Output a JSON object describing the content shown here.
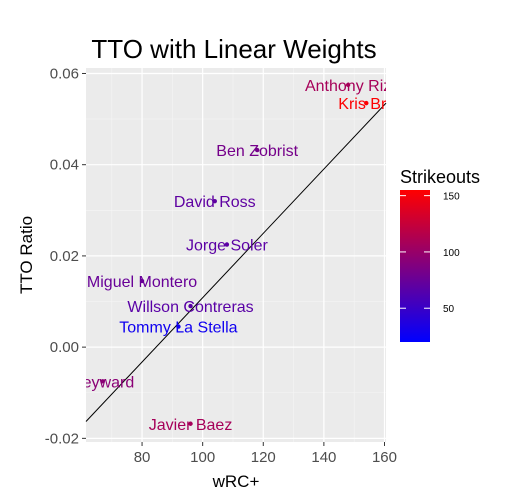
{
  "chart_data": {
    "type": "scatter",
    "title": "TTO with Linear Weights",
    "xlabel": "wRC+",
    "ylabel": "TTO Ratio",
    "xlim": [
      61.5,
      160.5
    ],
    "ylim": [
      -0.0208,
      0.0612
    ],
    "x_ticks": [
      80,
      100,
      120,
      140,
      160
    ],
    "x_tick_labels": [
      "80",
      "100",
      "120",
      "140",
      "160"
    ],
    "y_ticks": [
      -0.02,
      0.0,
      0.02,
      0.04,
      0.06
    ],
    "y_tick_labels": [
      "-0.02",
      "0.00",
      "0.02",
      "0.04",
      "0.06"
    ],
    "grid": true,
    "legend": {
      "title": "Strikeouts",
      "position": "right",
      "range": [
        20,
        155
      ],
      "ticks": [
        50,
        100,
        150
      ],
      "tick_labels": [
        "50",
        "100",
        "150"
      ],
      "low_color": "#0000ff",
      "high_color": "#ff0000"
    },
    "points": [
      {
        "label": "Anthony Rizzo",
        "shown_label": "Anthony Riz",
        "x": 148,
        "y": 0.0575,
        "strikeouts": 108
      },
      {
        "label": "Kris Bryant",
        "shown_label": "Kris Bry",
        "x": 154,
        "y": 0.0535,
        "strikeouts": 154
      },
      {
        "label": "Ben Zobrist",
        "x": 118,
        "y": 0.0432,
        "strikeouts": 82
      },
      {
        "label": "David Ross",
        "x": 104,
        "y": 0.032,
        "strikeouts": 70
      },
      {
        "label": "Jorge Soler",
        "x": 108,
        "y": 0.0225,
        "strikeouts": 68
      },
      {
        "label": "Miguel Montero",
        "shown_label": "Miguel Montero",
        "x": 80,
        "y": 0.0145,
        "strikeouts": 75
      },
      {
        "label": "Willson Contreras",
        "x": 96,
        "y": 0.009,
        "strikeouts": 67
      },
      {
        "label": "Tommy La Stella",
        "x": 92,
        "y": 0.0045,
        "strikeouts": 28
      },
      {
        "label": "Jason Heyward",
        "shown_label": "Heyward",
        "x": 67,
        "y": -0.0075,
        "strikeouts": 93
      },
      {
        "label": "Javier Baez",
        "x": 96,
        "y": -0.0168,
        "strikeouts": 108
      }
    ],
    "fit_line": {
      "x": [
        61.5,
        160.5
      ],
      "y": [
        -0.0163,
        0.0535
      ]
    }
  }
}
